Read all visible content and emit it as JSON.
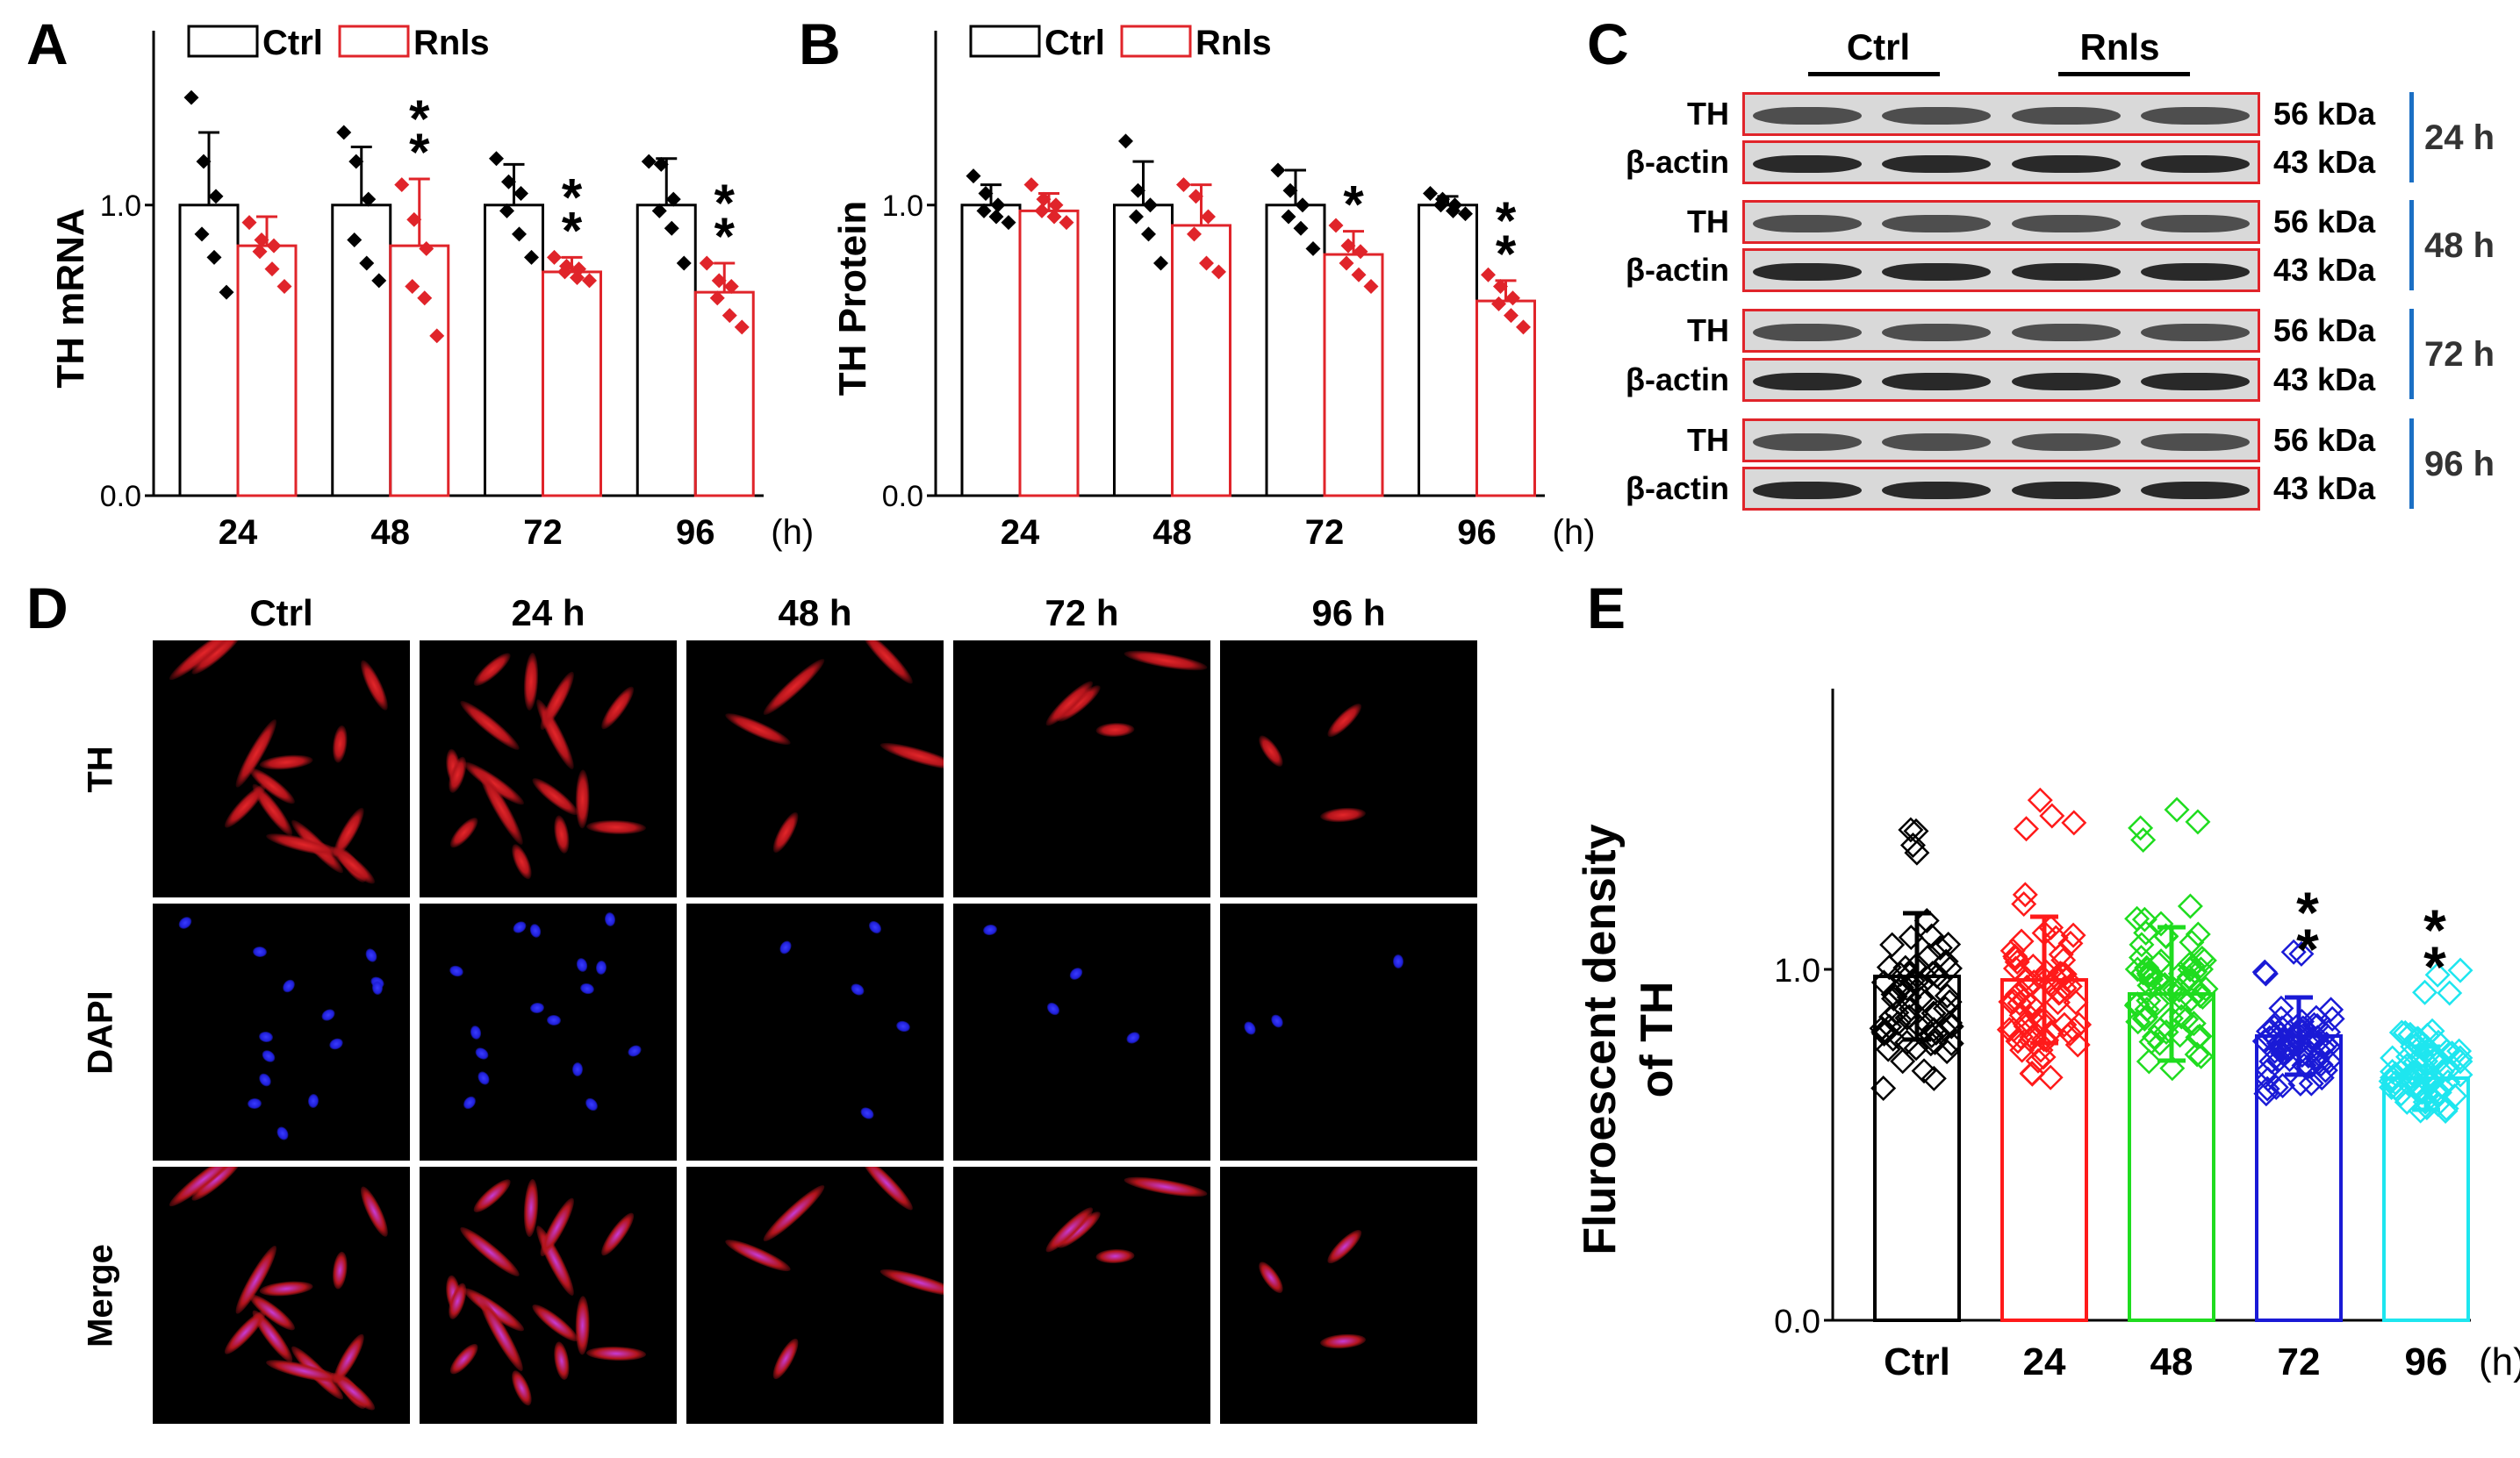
{
  "panels": {
    "A": "A",
    "B": "B",
    "C": "C",
    "D": "D",
    "E": "E"
  },
  "colors": {
    "ctrl": "#000000",
    "rnls": "#e0242a",
    "g24": "#ff1a1a",
    "g48": "#1fdc1f",
    "g72": "#1a1ad6",
    "g96": "#1ee6ef",
    "time_bar": "#1b6fc4"
  },
  "legend": {
    "ctrl": "Ctrl",
    "rnls": "Rnls"
  },
  "panel_a_chart": {
    "type": "bar",
    "ylabel": "TH mRNA",
    "categories": [
      "24",
      "48",
      "72",
      "96"
    ],
    "unit": "(h)",
    "ylim": [
      0,
      1.6
    ],
    "yticks": [
      "0.0",
      "1.0"
    ],
    "series": [
      {
        "name": "Ctrl",
        "values": [
          1.0,
          1.0,
          1.0,
          1.0
        ],
        "sd": [
          0.25,
          0.2,
          0.14,
          0.16
        ],
        "points": [
          [
            1.37,
            1.15,
            1.03,
            0.9,
            0.82,
            0.7
          ],
          [
            1.25,
            1.15,
            1.02,
            0.88,
            0.8,
            0.74
          ],
          [
            1.16,
            1.08,
            1.04,
            0.98,
            0.9,
            0.82
          ],
          [
            1.15,
            1.14,
            1.02,
            0.98,
            0.92,
            0.8
          ]
        ]
      },
      {
        "name": "Rnls",
        "values": [
          0.86,
          0.86,
          0.77,
          0.7
        ],
        "sd": [
          0.1,
          0.23,
          0.05,
          0.1
        ],
        "points": [
          [
            0.94,
            0.88,
            0.86,
            0.84,
            0.78,
            0.72
          ],
          [
            1.07,
            0.95,
            0.85,
            0.72,
            0.68,
            0.55
          ],
          [
            0.82,
            0.79,
            0.78,
            0.77,
            0.75,
            0.74
          ],
          [
            0.8,
            0.74,
            0.72,
            0.68,
            0.62,
            0.58
          ]
        ]
      }
    ],
    "significance": [
      "",
      "**",
      "**",
      "**"
    ]
  },
  "panel_b_chart": {
    "type": "bar",
    "ylabel": "TH Protein",
    "categories": [
      "24",
      "48",
      "72",
      "96"
    ],
    "unit": "(h)",
    "ylim": [
      0,
      1.6
    ],
    "yticks": [
      "0.0",
      "1.0"
    ],
    "series": [
      {
        "name": "Ctrl",
        "values": [
          1.0,
          1.0,
          1.0,
          1.0
        ],
        "sd": [
          0.07,
          0.15,
          0.12,
          0.03
        ],
        "points": [
          [
            1.1,
            1.04,
            1.0,
            0.98,
            0.96,
            0.94
          ],
          [
            1.22,
            1.05,
            1.0,
            0.96,
            0.9,
            0.8
          ],
          [
            1.12,
            1.05,
            1.0,
            0.96,
            0.92,
            0.85
          ],
          [
            1.04,
            1.02,
            1.0,
            1.0,
            0.98,
            0.97
          ]
        ]
      },
      {
        "name": "Rnls",
        "values": [
          0.98,
          0.93,
          0.83,
          0.67
        ],
        "sd": [
          0.06,
          0.14,
          0.08,
          0.07
        ],
        "points": [
          [
            1.07,
            1.02,
            1.0,
            0.98,
            0.96,
            0.94
          ],
          [
            1.07,
            1.03,
            0.96,
            0.9,
            0.8,
            0.77
          ],
          [
            0.93,
            0.86,
            0.84,
            0.8,
            0.76,
            0.72
          ],
          [
            0.76,
            0.72,
            0.68,
            0.66,
            0.62,
            0.58
          ]
        ]
      }
    ],
    "significance": [
      "",
      "",
      "*",
      "**"
    ]
  },
  "panel_c": {
    "group_ctrl": "Ctrl",
    "group_rnls": "Rnls",
    "blocks": [
      {
        "time": "24 h",
        "rows": [
          {
            "label": "TH",
            "kda": "56 kDa"
          },
          {
            "label": "β-actin",
            "kda": "43 kDa"
          }
        ]
      },
      {
        "time": "48 h",
        "rows": [
          {
            "label": "TH",
            "kda": "56 kDa"
          },
          {
            "label": "β-actin",
            "kda": "43 kDa"
          }
        ]
      },
      {
        "time": "72 h",
        "rows": [
          {
            "label": "TH",
            "kda": "56 kDa"
          },
          {
            "label": "β-actin",
            "kda": "43 kDa"
          }
        ]
      },
      {
        "time": "96 h",
        "rows": [
          {
            "label": "TH",
            "kda": "56 kDa"
          },
          {
            "label": "β-actin",
            "kda": "43 kDa"
          }
        ]
      }
    ]
  },
  "panel_d": {
    "columns": [
      "Ctrl",
      "24 h",
      "48 h",
      "72 h",
      "96 h"
    ],
    "rows": [
      "TH",
      "DAPI",
      "Merge"
    ]
  },
  "panel_e_chart": {
    "type": "bar",
    "ylabel_line1": "Fluroescent density",
    "ylabel_line2": "of TH",
    "categories": [
      "Ctrl",
      "24",
      "48",
      "72",
      "96"
    ],
    "unit": "(h)",
    "ylim": [
      0,
      1.8
    ],
    "yticks": [
      "0.0",
      "1.0"
    ],
    "values": [
      0.98,
      0.97,
      0.93,
      0.81,
      0.69
    ],
    "sd": [
      0.18,
      0.18,
      0.19,
      0.11,
      0.09
    ],
    "spread": [
      [
        0.6,
        1.45
      ],
      [
        0.62,
        1.5
      ],
      [
        0.62,
        1.5
      ],
      [
        0.62,
        1.05
      ],
      [
        0.55,
        1.0
      ]
    ],
    "significance": [
      "",
      "",
      "",
      "**",
      "**"
    ]
  }
}
